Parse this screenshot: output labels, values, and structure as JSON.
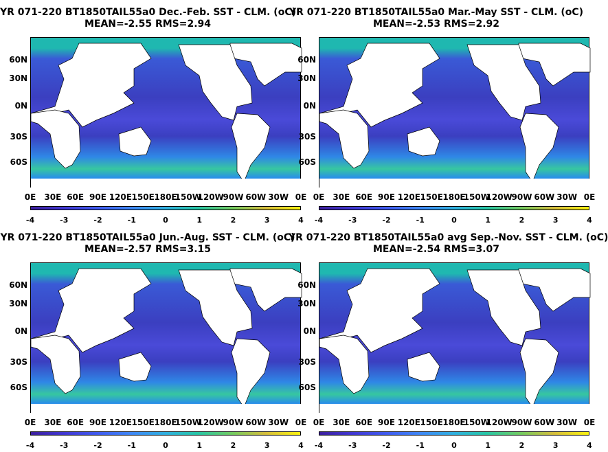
{
  "chart_data": [
    {
      "type": "heatmap",
      "title": "YR 071-220 BT1850TAIL55a0  Dec.-Feb. SST - CLM. (oC)",
      "subtitle": "MEAN=-2.55   RMS=2.94",
      "xticks": [
        "0E",
        "30E",
        "60E",
        "90E",
        "120E",
        "150E",
        "180E",
        "150W",
        "120W",
        "90W",
        "60W",
        "30W",
        "0E"
      ],
      "yticks": [
        "60N",
        "30N",
        "0N",
        "30S",
        "60S"
      ],
      "colorbar_ticks": [
        "-4",
        "-3",
        "-2",
        "-1",
        "0",
        "1",
        "2",
        "3",
        "4"
      ],
      "clim": [
        -4,
        4
      ],
      "mean": -2.55,
      "rms": 2.94
    },
    {
      "type": "heatmap",
      "title": "YR 071-220 BT1850TAIL55a0  Mar.-May SST - CLM. (oC)",
      "subtitle": "MEAN=-2.53   RMS=2.92",
      "xticks": [
        "0E",
        "30E",
        "60E",
        "90E",
        "120E",
        "150E",
        "180E",
        "150W",
        "120W",
        "90W",
        "60W",
        "30W",
        "0E"
      ],
      "yticks": [
        "60N",
        "30N",
        "0N",
        "30S",
        "60S"
      ],
      "colorbar_ticks": [
        "-4",
        "-3",
        "-2",
        "-1",
        "0",
        "1",
        "2",
        "3",
        "4"
      ],
      "clim": [
        -4,
        4
      ],
      "mean": -2.53,
      "rms": 2.92
    },
    {
      "type": "heatmap",
      "title": "YR 071-220 BT1850TAIL55a0  Jun.-Aug. SST - CLM. (oC)",
      "subtitle": "MEAN=-2.57   RMS=3.15",
      "xticks": [
        "0E",
        "30E",
        "60E",
        "90E",
        "120E",
        "150E",
        "180E",
        "150W",
        "120W",
        "90W",
        "60W",
        "30W",
        "0E"
      ],
      "yticks": [
        "60N",
        "30N",
        "0N",
        "30S",
        "60S"
      ],
      "colorbar_ticks": [
        "-4",
        "-3",
        "-2",
        "-1",
        "0",
        "1",
        "2",
        "3",
        "4"
      ],
      "clim": [
        -4,
        4
      ],
      "mean": -2.57,
      "rms": 3.15
    },
    {
      "type": "heatmap",
      "title": "YR 071-220 BT1850TAIL55a0 avg Sep.-Nov. SST - CLM. (oC)",
      "subtitle": "MEAN=-2.54   RMS=3.07",
      "xticks": [
        "0E",
        "30E",
        "60E",
        "90E",
        "120E",
        "150E",
        "180E",
        "150W",
        "120W",
        "90W",
        "60W",
        "30W",
        "0E"
      ],
      "yticks": [
        "60N",
        "30N",
        "0N",
        "30S",
        "60S"
      ],
      "colorbar_ticks": [
        "-4",
        "-3",
        "-2",
        "-1",
        "0",
        "1",
        "2",
        "3",
        "4"
      ],
      "clim": [
        -4,
        4
      ],
      "mean": -2.54,
      "rms": 3.07
    }
  ]
}
